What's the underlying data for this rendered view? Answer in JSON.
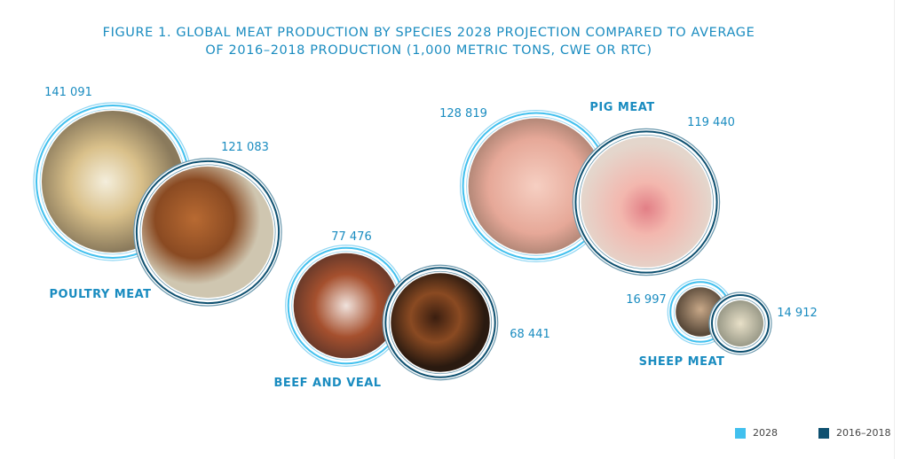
{
  "title_line1": "FIGURE 1. GLOBAL MEAT PRODUCTION BY SPECIES 2028 PROJECTION COMPARED TO AVERAGE",
  "title_line2": "OF 2016–2018 PRODUCTION (1,000 METRIC TONS, CWE OR RTC)",
  "colors": {
    "2028": "#41c0ee",
    "2016-2018": "#0e5070",
    "title": "#1a8cc0"
  },
  "chart_data": {
    "type": "bubble",
    "title": "FIGURE 1. GLOBAL MEAT PRODUCTION BY SPECIES 2028 PROJECTION COMPARED TO AVERAGE OF 2016–2018 PRODUCTION (1,000 METRIC TONS, CWE OR RTC)",
    "categories": [
      "POULTRY MEAT",
      "BEEF AND VEAL",
      "PIG MEAT",
      "SHEEP MEAT"
    ],
    "series": [
      {
        "name": "2028",
        "values": [
          141091,
          77476,
          128819,
          16997
        ],
        "labels": [
          "141 091",
          "77 476",
          "128 819",
          "16 997"
        ]
      },
      {
        "name": "2016–2018",
        "values": [
          121083,
          68441,
          119440,
          14912
        ],
        "labels": [
          "121 083",
          "68 441",
          "119 440",
          "14 912"
        ]
      }
    ],
    "legend": {
      "position": "bottom-right",
      "entries": [
        "2028",
        "2016–2018"
      ]
    }
  }
}
